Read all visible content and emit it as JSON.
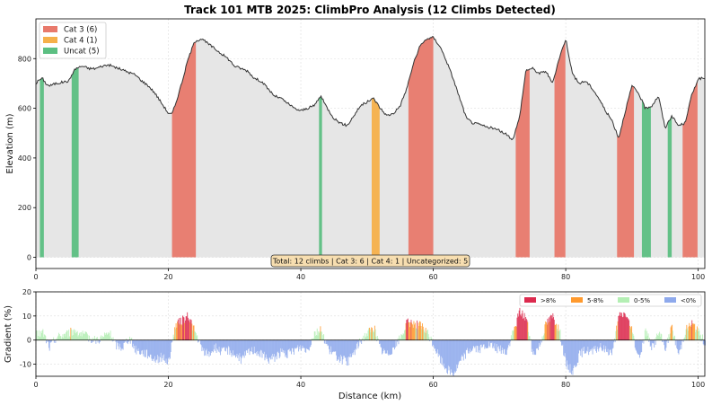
{
  "chart_data": [
    {
      "type": "area",
      "title": "Track 101 MTB 2025: ClimbPro Analysis (12 Climbs Detected)",
      "xlabel": "",
      "ylabel": "Elevation (m)",
      "xlim": [
        0,
        101
      ],
      "ylim": [
        -45,
        960
      ],
      "xticks": [
        0,
        20,
        40,
        60,
        80,
        100
      ],
      "yticks": [
        0,
        200,
        400,
        600,
        800
      ],
      "grid": true,
      "profile": {
        "x": [
          0,
          0.5,
          1,
          1.5,
          2,
          3,
          4,
          5,
          5.5,
          6,
          7,
          8,
          9,
          10,
          11,
          12,
          13,
          14,
          15,
          16,
          17,
          18,
          19,
          20,
          20.5,
          21,
          22,
          23,
          24,
          25,
          26,
          27,
          28,
          29,
          30,
          31,
          32,
          33,
          34,
          35,
          36,
          37,
          38,
          39,
          40,
          41,
          42,
          42.5,
          43,
          44,
          45,
          46,
          47,
          48,
          49,
          50,
          51,
          52,
          53,
          54,
          55,
          56,
          57,
          58,
          59,
          60,
          61,
          62,
          63,
          64,
          65,
          66,
          67,
          68,
          69,
          70,
          71,
          72,
          73,
          74,
          75,
          76,
          77,
          78,
          79,
          80,
          81,
          82,
          83,
          84,
          85,
          86,
          87,
          88,
          89,
          90,
          91,
          92,
          93,
          94,
          95,
          96,
          97,
          98,
          99,
          100,
          101
        ],
        "y": [
          700,
          715,
          720,
          700,
          690,
          700,
          705,
          710,
          740,
          760,
          770,
          760,
          760,
          770,
          775,
          765,
          755,
          745,
          735,
          710,
          690,
          660,
          620,
          580,
          575,
          610,
          700,
          800,
          870,
          880,
          860,
          840,
          820,
          800,
          770,
          760,
          750,
          720,
          710,
          680,
          650,
          640,
          620,
          600,
          590,
          600,
          610,
          630,
          650,
          600,
          560,
          540,
          530,
          570,
          610,
          625,
          640,
          600,
          570,
          580,
          610,
          680,
          780,
          850,
          880,
          885,
          850,
          790,
          720,
          640,
          560,
          540,
          535,
          525,
          520,
          510,
          495,
          475,
          560,
          755,
          760,
          740,
          750,
          700,
          800,
          880,
          740,
          700,
          710,
          680,
          640,
          590,
          550,
          480,
          590,
          690,
          660,
          600,
          610,
          650,
          520,
          570,
          530,
          540,
          650,
          720,
          720
        ],
        "color": "#e6e6e6",
        "line_color": "#333333"
      },
      "climbs": [
        {
          "start": 0.6,
          "end": 1.3,
          "category": "Uncat"
        },
        {
          "start": 5.4,
          "end": 6.5,
          "category": "Uncat"
        },
        {
          "start": 20.4,
          "end": 24.2,
          "category": "Cat 3"
        },
        {
          "start": 42.6,
          "end": 43.3,
          "category": "Uncat"
        },
        {
          "start": 50.6,
          "end": 51.9,
          "category": "Cat 4"
        },
        {
          "start": 56.2,
          "end": 60.0,
          "category": "Cat 3"
        },
        {
          "start": 72.3,
          "end": 74.6,
          "category": "Cat 3"
        },
        {
          "start": 78.2,
          "end": 80.1,
          "category": "Cat 3"
        },
        {
          "start": 87.7,
          "end": 90.4,
          "category": "Cat 3"
        },
        {
          "start": 91.5,
          "end": 93.0,
          "category": "Uncat"
        },
        {
          "start": 95.4,
          "end": 96.1,
          "category": "Uncat"
        },
        {
          "start": 97.6,
          "end": 100.0,
          "category": "Cat 3"
        }
      ],
      "legend": {
        "position": "top-left",
        "entries": [
          {
            "label": "Cat 3 (6)",
            "color": "#e8796b"
          },
          {
            "label": "Cat 4 (1)",
            "color": "#f5b04a"
          },
          {
            "label": "Uncat (5)",
            "color": "#5cbf82"
          }
        ]
      },
      "annotation": "Total: 12 climbs | Cat 3: 6 | Cat 4: 1 | Uncategorized: 5"
    },
    {
      "type": "bar",
      "title": "",
      "xlabel": "Distance (km)",
      "ylabel": "Gradient (%)",
      "xlim": [
        0,
        101
      ],
      "ylim": [
        -15,
        20
      ],
      "xticks": [
        0,
        20,
        40,
        60,
        80,
        100
      ],
      "yticks": [
        -10,
        0,
        10,
        20
      ],
      "grid": true,
      "gradient_anchors": {
        "x": [
          0,
          1,
          2,
          3,
          4,
          5,
          6,
          7,
          8,
          9,
          10,
          11,
          12,
          13,
          14,
          15,
          16,
          17,
          18,
          19,
          20,
          21,
          22,
          23,
          24,
          25,
          26,
          27,
          28,
          29,
          30,
          31,
          32,
          33,
          34,
          35,
          36,
          37,
          38,
          39,
          40,
          41,
          42,
          43,
          44,
          45,
          46,
          47,
          48,
          49,
          50,
          51,
          52,
          53,
          54,
          55,
          56,
          57,
          58,
          59,
          60,
          61,
          62,
          63,
          64,
          65,
          66,
          67,
          68,
          69,
          70,
          71,
          72,
          73,
          74,
          75,
          76,
          77,
          78,
          79,
          80,
          81,
          82,
          83,
          84,
          85,
          86,
          87,
          88,
          89,
          90,
          91,
          92,
          93,
          94,
          95,
          96,
          97,
          98,
          99,
          100,
          101
        ],
        "y": [
          2,
          3,
          -3,
          1,
          2,
          3,
          4,
          2,
          1,
          0,
          1,
          3,
          -2,
          -3,
          1,
          -4,
          -5,
          -6,
          -8,
          -7,
          -9,
          6,
          8,
          10,
          3,
          -4,
          -6,
          -3,
          -5,
          -4,
          -6,
          -8,
          -5,
          -4,
          -6,
          -8,
          -7,
          -5,
          -6,
          -4,
          -3,
          -4,
          3,
          4,
          -3,
          -6,
          -8,
          -9,
          -5,
          0,
          3,
          5,
          -4,
          -6,
          -3,
          1,
          7,
          7,
          6,
          3,
          -2,
          -8,
          -12,
          -14,
          -9,
          -5,
          -3,
          -4,
          -2,
          -3,
          -4,
          -5,
          3,
          12,
          9,
          -6,
          -2,
          7,
          10,
          4,
          -10,
          -13,
          -6,
          -4,
          -5,
          -3,
          -4,
          -5,
          10,
          11,
          3,
          -8,
          4,
          -3,
          3,
          -3,
          5,
          -6,
          4,
          7,
          3,
          -1
        ],
        "seed": 101
      },
      "legend": {
        "position": "top-right",
        "entries": [
          {
            "label": ">8%",
            "color": "#dc2a4e"
          },
          {
            "label": "5-8%",
            "color": "#ff9a2e"
          },
          {
            "label": "0-5%",
            "color": "#b4efb4"
          },
          {
            "label": "<0%",
            "color": "#8ea9ec"
          }
        ]
      }
    }
  ]
}
